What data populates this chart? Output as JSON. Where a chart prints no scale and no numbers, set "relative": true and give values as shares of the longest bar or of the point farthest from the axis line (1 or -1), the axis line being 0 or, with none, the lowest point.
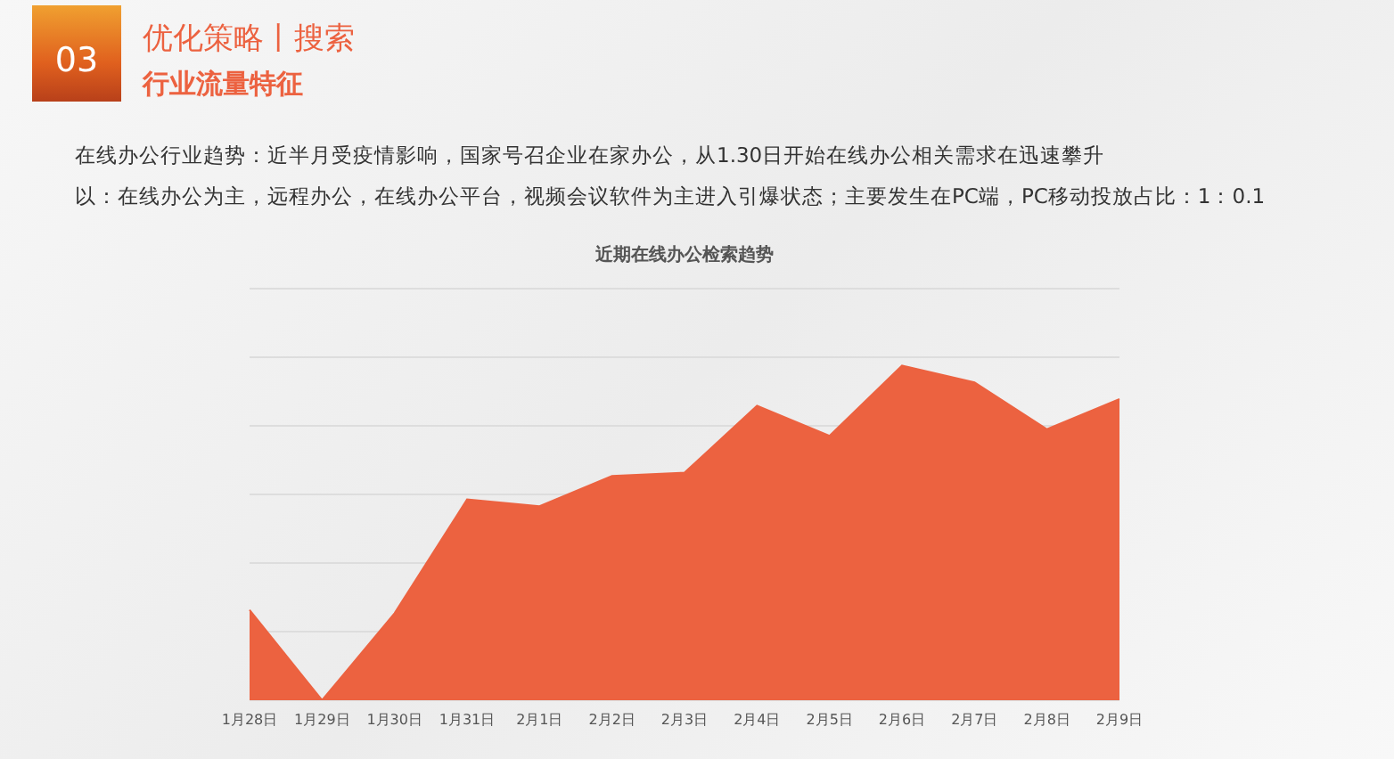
{
  "chart_data": {
    "type": "area",
    "title": "近期在线办公检索趋势",
    "annotations": [
      "03",
      "优化策略丨搜索",
      "行业流量特征",
      "在线办公行业趋势：近半月受疫情影响，国家号召企业在家办公，从1.30日开始在线办公相关需求在迅速攀升",
      "以：在线办公为主，远程办公，在线办公平台，视频会议软件为主进入引爆状态；主要发生在PC端，PC移动投放占比：1：0.1"
    ],
    "categories": [
      "1月28日",
      "1月29日",
      "1月30日",
      "1月31日",
      "2月1日",
      "2月2日",
      "2月3日",
      "2月4日",
      "2月5日",
      "2月6日",
      "2月7日",
      "2月8日",
      "2月9日"
    ],
    "values": [
      0.27,
      0,
      0.26,
      0.6,
      0.58,
      0.67,
      0.68,
      0.88,
      0.79,
      1,
      0.95,
      0.81,
      0.9
    ],
    "color": "#ec6240",
    "relative": true,
    "grid": "y"
  }
}
